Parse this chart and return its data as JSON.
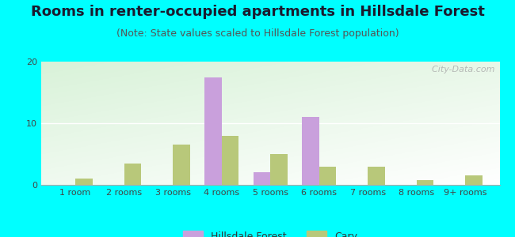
{
  "title": "Rooms in renter-occupied apartments in Hillsdale Forest",
  "subtitle": "(Note: State values scaled to Hillsdale Forest population)",
  "categories": [
    "1 room",
    "2 rooms",
    "3 rooms",
    "4 rooms",
    "5 rooms",
    "6 rooms",
    "7 rooms",
    "8 rooms",
    "9+ rooms"
  ],
  "hillsdale_values": [
    0,
    0,
    0,
    17.5,
    2,
    11,
    0,
    0,
    0
  ],
  "cary_values": [
    1,
    3.5,
    6.5,
    8,
    5,
    3,
    3,
    0.75,
    1.5
  ],
  "hillsdale_color": "#c9a0dc",
  "cary_color": "#b8c87a",
  "background_color": "#00ffff",
  "ylim": [
    0,
    20
  ],
  "yticks": [
    0,
    10,
    20
  ],
  "bar_width": 0.35,
  "watermark": "  City-Data.com",
  "legend_hillsdale": "Hillsdale Forest",
  "legend_cary": "Cary",
  "title_fontsize": 13,
  "subtitle_fontsize": 9,
  "tick_fontsize": 8,
  "legend_fontsize": 9
}
